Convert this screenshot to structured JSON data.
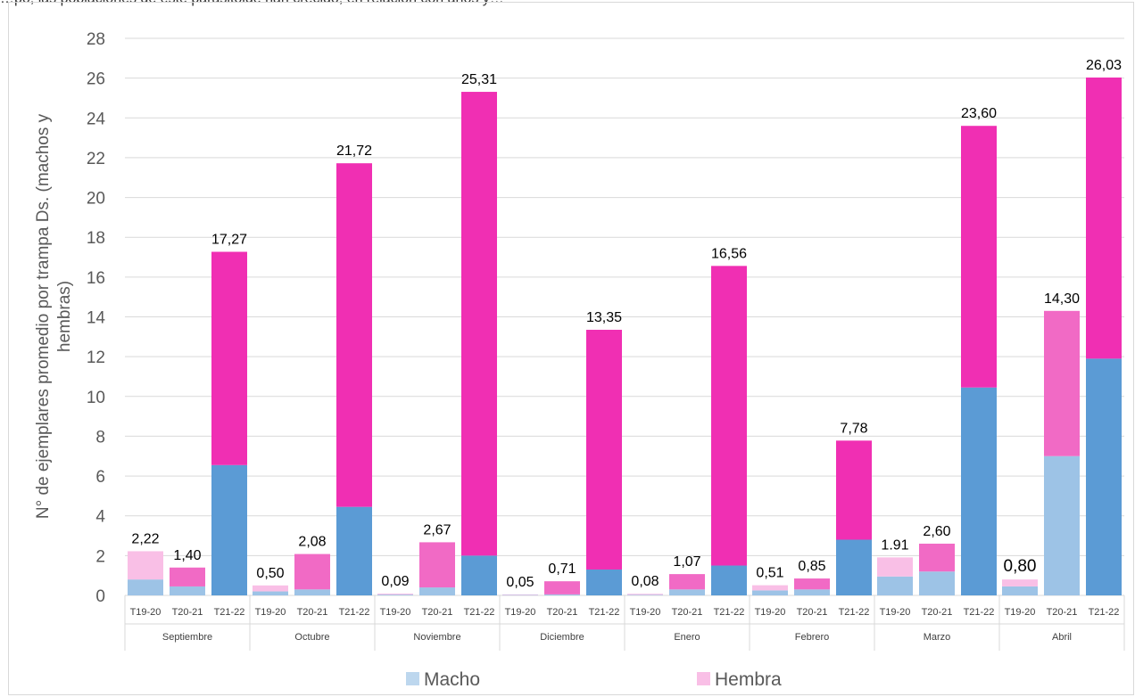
{
  "top_caption": "…po, las poblaciones de este parasitoide han crecido, en relación con años y…",
  "chart_data": {
    "type": "bar",
    "stacked": true,
    "ylabel": "N° de ejemplares promedio por trampa Ds. (machos y hembras)",
    "ylim": [
      0,
      28
    ],
    "yticks": [
      0,
      2,
      4,
      6,
      8,
      10,
      12,
      14,
      16,
      18,
      20,
      22,
      24,
      26,
      28
    ],
    "grid": true,
    "legend_position": "bottom",
    "legend": [
      "Macho",
      "Hembra"
    ],
    "groups": [
      {
        "name": "Septiembre",
        "bars": [
          {
            "label": "T19-20",
            "macho": 0.8,
            "hembra": 1.42,
            "total": "2,22"
          },
          {
            "label": "T20-21",
            "macho": 0.45,
            "hembra": 0.95,
            "total": "1,40"
          },
          {
            "label": "T21-22",
            "macho": 6.55,
            "hembra": 10.72,
            "total": "17,27"
          }
        ]
      },
      {
        "name": "Octubre",
        "bars": [
          {
            "label": "T19-20",
            "macho": 0.2,
            "hembra": 0.3,
            "total": "0,50"
          },
          {
            "label": "T20-21",
            "macho": 0.3,
            "hembra": 1.78,
            "total": "2,08"
          },
          {
            "label": "T21-22",
            "macho": 4.45,
            "hembra": 17.27,
            "total": "21,72"
          }
        ]
      },
      {
        "name": "Noviembre",
        "bars": [
          {
            "label": "T19-20",
            "macho": 0.04,
            "hembra": 0.05,
            "total": "0,09"
          },
          {
            "label": "T20-21",
            "macho": 0.4,
            "hembra": 2.27,
            "total": "2,67"
          },
          {
            "label": "T21-22",
            "macho": 2.0,
            "hembra": 23.31,
            "total": "25,31"
          }
        ]
      },
      {
        "name": "Diciembre",
        "bars": [
          {
            "label": "T19-20",
            "macho": 0.02,
            "hembra": 0.03,
            "total": "0,05"
          },
          {
            "label": "T20-21",
            "macho": 0.05,
            "hembra": 0.66,
            "total": "0,71"
          },
          {
            "label": "T21-22",
            "macho": 1.3,
            "hembra": 12.05,
            "total": "13,35"
          }
        ]
      },
      {
        "name": "Enero",
        "bars": [
          {
            "label": "T19-20",
            "macho": 0.03,
            "hembra": 0.05,
            "total": "0,08"
          },
          {
            "label": "T20-21",
            "macho": 0.3,
            "hembra": 0.77,
            "total": "1,07"
          },
          {
            "label": "T21-22",
            "macho": 1.5,
            "hembra": 15.06,
            "total": "16,56"
          }
        ]
      },
      {
        "name": "Febrero",
        "bars": [
          {
            "label": "T19-20",
            "macho": 0.25,
            "hembra": 0.26,
            "total": "0,51"
          },
          {
            "label": "T20-21",
            "macho": 0.3,
            "hembra": 0.55,
            "total": "0,85"
          },
          {
            "label": "T21-22",
            "macho": 2.8,
            "hembra": 4.98,
            "total": "7,78"
          }
        ]
      },
      {
        "name": "Marzo",
        "bars": [
          {
            "label": "T19-20",
            "macho": 0.95,
            "hembra": 0.96,
            "total": "1.91"
          },
          {
            "label": "T20-21",
            "macho": 1.2,
            "hembra": 1.4,
            "total": "2,60"
          },
          {
            "label": "T21-22",
            "macho": 10.45,
            "hembra": 13.15,
            "total": "23,60"
          }
        ]
      },
      {
        "name": "Abril",
        "bars": [
          {
            "label": "T19-20",
            "macho": 0.45,
            "hembra": 0.35,
            "total": "0,80"
          },
          {
            "label": "T20-21",
            "macho": 7.0,
            "hembra": 7.3,
            "total": "14,30"
          },
          {
            "label": "T21-22",
            "macho": 11.9,
            "hembra": 14.13,
            "total": "26,03"
          }
        ]
      }
    ],
    "colors": {
      "T19-20": {
        "macho": "#9dc3e6",
        "hembra": "#f9bfe6"
      },
      "T20-21": {
        "macho": "#9dc3e6",
        "hembra": "#f16ac5"
      },
      "T21-22": {
        "macho": "#5b9bd5",
        "hembra": "#f02fb3"
      },
      "Abril-T20-21": {
        "macho": "#9dc3e6",
        "hembra": "#f16ac5"
      }
    },
    "legend_colors": {
      "Macho": "#bdd7ee",
      "Hembra": "#f9bfe6"
    }
  }
}
